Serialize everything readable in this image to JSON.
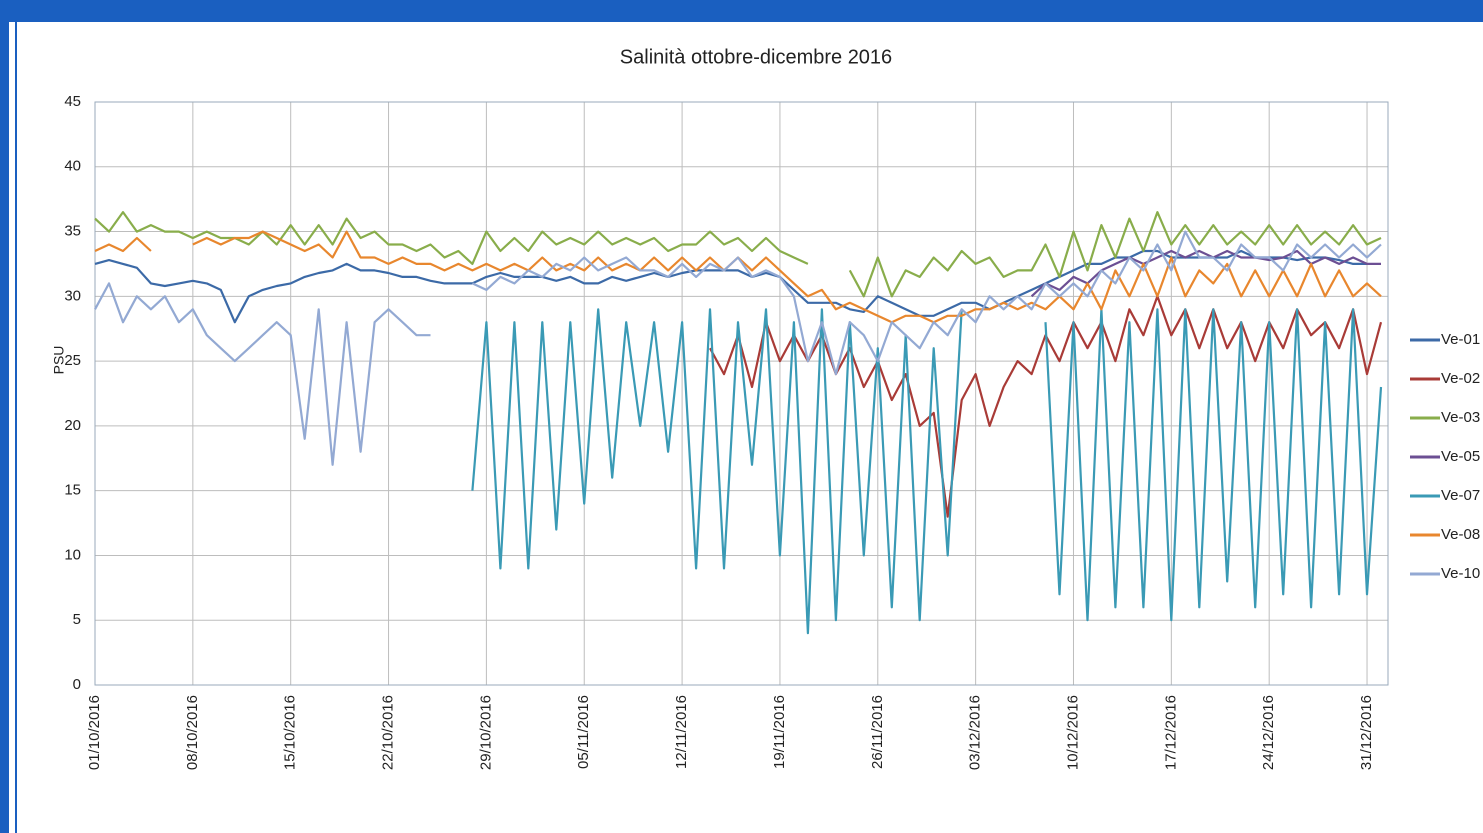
{
  "chart_data": {
    "type": "line",
    "title": "Salinità ottobre-dicembre 2016",
    "y_label": "PSU",
    "categories": [
      "01/10/2016",
      null,
      null,
      null,
      null,
      null,
      null,
      "08/10/2016",
      null,
      null,
      null,
      null,
      null,
      null,
      "15/10/2016",
      null,
      null,
      null,
      null,
      null,
      null,
      "22/10/2016",
      null,
      null,
      null,
      null,
      null,
      null,
      "29/10/2016",
      null,
      null,
      null,
      null,
      null,
      null,
      "05/11/2016",
      null,
      null,
      null,
      null,
      null,
      null,
      "12/11/2016",
      null,
      null,
      null,
      null,
      null,
      null,
      "19/11/2016",
      null,
      null,
      null,
      null,
      null,
      null,
      "26/11/2016",
      null,
      null,
      null,
      null,
      null,
      null,
      "03/12/2016",
      null,
      null,
      null,
      null,
      null,
      null,
      "10/12/2016",
      null,
      null,
      null,
      null,
      null,
      null,
      "17/12/2016",
      null,
      null,
      null,
      null,
      null,
      null,
      "24/12/2016",
      null,
      null,
      null,
      null,
      null,
      null,
      "31/12/2016",
      null
    ],
    "ylim": [
      0,
      45
    ],
    "yticks": [
      0,
      5,
      10,
      15,
      20,
      25,
      30,
      35,
      40,
      45
    ],
    "grid": true,
    "legend": "right",
    "series": [
      {
        "name": "Ve-01",
        "color": "#3c6aa7",
        "values": [
          32.5,
          32.8,
          32.5,
          32.2,
          31,
          30.8,
          31,
          31.2,
          31,
          30.5,
          28,
          30,
          30.5,
          30.8,
          31,
          31.5,
          31.8,
          32,
          32.5,
          32,
          32,
          31.8,
          31.5,
          31.5,
          31.2,
          31,
          31,
          31,
          31.5,
          31.8,
          31.5,
          31.5,
          31.5,
          31.2,
          31.5,
          31,
          31,
          31.5,
          31.2,
          31.5,
          31.8,
          31.5,
          31.8,
          32,
          32,
          32,
          32,
          31.5,
          31.8,
          31.5,
          30.5,
          29.5,
          29.5,
          29.5,
          29,
          28.8,
          30,
          29.5,
          29,
          28.5,
          28.5,
          29,
          29.5,
          29.5,
          29,
          29.5,
          30,
          30.5,
          31,
          31.5,
          32,
          32.5,
          32.5,
          33,
          33,
          33.5,
          33.5,
          33,
          33,
          33,
          33,
          33,
          33.5,
          33,
          33,
          33,
          32.8,
          33,
          33,
          32.8,
          32.5,
          32.5,
          null
        ]
      },
      {
        "name": "Ve-02",
        "color": "#a93b37",
        "values": [
          null,
          null,
          null,
          null,
          null,
          null,
          null,
          null,
          null,
          null,
          null,
          null,
          null,
          null,
          null,
          null,
          null,
          null,
          null,
          null,
          null,
          null,
          null,
          null,
          null,
          null,
          null,
          null,
          null,
          null,
          null,
          null,
          null,
          null,
          null,
          null,
          null,
          null,
          null,
          null,
          null,
          null,
          null,
          null,
          26,
          24,
          27,
          23,
          28,
          25,
          27,
          25,
          27,
          24,
          26,
          23,
          25,
          22,
          24,
          20,
          21,
          13,
          22,
          24,
          20,
          23,
          25,
          24,
          27,
          25,
          28,
          26,
          28,
          25,
          29,
          27,
          30,
          27,
          29,
          26,
          29,
          26,
          28,
          25,
          28,
          26,
          29,
          27,
          28,
          26,
          29,
          24,
          28
        ]
      },
      {
        "name": "Ve-03",
        "color": "#89ad4b",
        "values": [
          36,
          35,
          36.5,
          35,
          35.5,
          35,
          35,
          34.5,
          35,
          34.5,
          34.5,
          34,
          35,
          34,
          35.5,
          34,
          35.5,
          34,
          36,
          34.5,
          35,
          34,
          34,
          33.5,
          34,
          33,
          33.5,
          32.5,
          35,
          33.5,
          34.5,
          33.5,
          35,
          34,
          34.5,
          34,
          35,
          34,
          34.5,
          34,
          34.5,
          33.5,
          34,
          34,
          35,
          34,
          34.5,
          33.5,
          34.5,
          33.5,
          33,
          32.5,
          null,
          null,
          32,
          30,
          33,
          30,
          32,
          31.5,
          33,
          32,
          33.5,
          32.5,
          33,
          31.5,
          32,
          32,
          34,
          31.5,
          35,
          32,
          35.5,
          33,
          36,
          33.5,
          36.5,
          34,
          35.5,
          34,
          35.5,
          34,
          35,
          34,
          35.5,
          34,
          35.5,
          34,
          35,
          34,
          35.5,
          34,
          34.5
        ]
      },
      {
        "name": "Ve-05",
        "color": "#6c4f93",
        "values": [
          null,
          null,
          null,
          null,
          null,
          null,
          null,
          null,
          null,
          null,
          null,
          null,
          null,
          null,
          null,
          null,
          null,
          null,
          null,
          null,
          null,
          null,
          null,
          null,
          null,
          null,
          null,
          null,
          null,
          null,
          null,
          null,
          null,
          null,
          null,
          null,
          null,
          null,
          null,
          null,
          null,
          null,
          null,
          null,
          null,
          null,
          null,
          null,
          null,
          null,
          null,
          null,
          null,
          null,
          null,
          null,
          null,
          null,
          null,
          null,
          null,
          null,
          null,
          null,
          null,
          null,
          null,
          30,
          31,
          30.5,
          31.5,
          31,
          32,
          32.5,
          33,
          32.5,
          33,
          33.5,
          33,
          33.5,
          33,
          33.5,
          33,
          33,
          32.8,
          33,
          33.5,
          32.5,
          33,
          32.5,
          33,
          32.5,
          32.5
        ]
      },
      {
        "name": "Ve-07",
        "color": "#3a9ab5",
        "values": [
          null,
          null,
          null,
          null,
          null,
          null,
          null,
          null,
          null,
          null,
          null,
          null,
          null,
          null,
          null,
          null,
          null,
          null,
          null,
          null,
          null,
          null,
          null,
          null,
          null,
          null,
          null,
          15,
          28,
          9,
          28,
          9,
          28,
          12,
          28,
          14,
          29,
          16,
          28,
          20,
          28,
          18,
          28,
          9,
          29,
          9,
          28,
          17,
          29,
          10,
          28,
          4,
          29,
          5,
          28,
          10,
          26,
          6,
          27,
          5,
          26,
          10,
          29,
          null,
          null,
          null,
          null,
          null,
          28,
          7,
          28,
          5,
          29,
          6,
          28,
          6,
          29,
          5,
          29,
          6,
          29,
          8,
          28,
          6,
          28,
          7,
          29,
          6,
          28,
          7,
          29,
          7,
          23
        ]
      },
      {
        "name": "Ve-08",
        "color": "#e8872e",
        "values": [
          33.5,
          34,
          33.5,
          34.5,
          33.5,
          null,
          null,
          34,
          34.5,
          34,
          34.5,
          34.5,
          35,
          34.5,
          34,
          33.5,
          34,
          33,
          35,
          33,
          33,
          32.5,
          33,
          32.5,
          32.5,
          32,
          32.5,
          32,
          32.5,
          32,
          32.5,
          32,
          33,
          32,
          32.5,
          32,
          33,
          32,
          32.5,
          32,
          33,
          32,
          33,
          32,
          33,
          32,
          33,
          32,
          33,
          32,
          31,
          30,
          30.5,
          29,
          29.5,
          29,
          28.5,
          28,
          28.5,
          28.5,
          28,
          28.5,
          28.5,
          29,
          29,
          29.5,
          29,
          29.5,
          29,
          30,
          29,
          31,
          29,
          32,
          30,
          32.5,
          30,
          33,
          30,
          32,
          31,
          32.5,
          30,
          32,
          30,
          32,
          30,
          32.5,
          30,
          32,
          30,
          31,
          30
        ]
      },
      {
        "name": "Ve-10",
        "color": "#93a9d3",
        "values": [
          29,
          31,
          28,
          30,
          29,
          30,
          28,
          29,
          27,
          26,
          25,
          26,
          27,
          28,
          27,
          19,
          29,
          17,
          28,
          18,
          28,
          29,
          28,
          27,
          27,
          null,
          null,
          31,
          30.5,
          31.5,
          31,
          32,
          31.5,
          32.5,
          32,
          33,
          32,
          32.5,
          33,
          32,
          32,
          31.5,
          32.5,
          31.5,
          32.5,
          32,
          33,
          31.5,
          32,
          31.5,
          30,
          25,
          28,
          24,
          28,
          27,
          25,
          28,
          27,
          26,
          28,
          27,
          29,
          28,
          30,
          29,
          30,
          29,
          31,
          30,
          31,
          30,
          32,
          31,
          33,
          32,
          34,
          32,
          35,
          33,
          33,
          32,
          34,
          33,
          33,
          32,
          34,
          33,
          34,
          33,
          34,
          33,
          34
        ]
      }
    ]
  }
}
